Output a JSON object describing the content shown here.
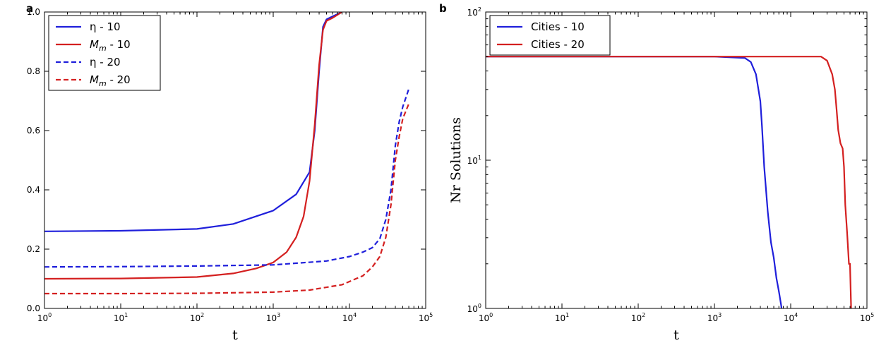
{
  "chart_data": [
    {
      "panel": "a",
      "type": "line",
      "xlabel": "t",
      "ylabel": "",
      "xscale": "log",
      "yscale": "linear",
      "xlim": [
        1,
        100000
      ],
      "ylim": [
        0,
        1
      ],
      "xticks": [
        {
          "base": "10",
          "exp": "0",
          "value": 1
        },
        {
          "base": "10",
          "exp": "1",
          "value": 10
        },
        {
          "base": "10",
          "exp": "2",
          "value": 100
        },
        {
          "base": "10",
          "exp": "3",
          "value": 1000
        },
        {
          "base": "10",
          "exp": "4",
          "value": 10000
        },
        {
          "base": "10",
          "exp": "5",
          "value": 100000
        }
      ],
      "yticks": [
        {
          "label": "0.0",
          "value": 0
        },
        {
          "label": "0.2",
          "value": 0.2
        },
        {
          "label": "0.4",
          "value": 0.4
        },
        {
          "label": "0.6",
          "value": 0.6
        },
        {
          "label": "0.8",
          "value": 0.8
        },
        {
          "label": "1.0",
          "value": 1.0
        }
      ],
      "legend_position": "top-left",
      "series": [
        {
          "name": "η  - 10",
          "color": "#1f1fdb",
          "style": "solid",
          "x": [
            1,
            10,
            100,
            300,
            1000,
            2000,
            3000,
            3500,
            4000,
            4500,
            5000,
            6000,
            8000
          ],
          "y": [
            0.26,
            0.262,
            0.268,
            0.285,
            0.33,
            0.385,
            0.46,
            0.6,
            0.8,
            0.95,
            0.975,
            0.985,
            1.0
          ]
        },
        {
          "name": "M_m  - 10",
          "color": "#d42020",
          "style": "solid",
          "x": [
            1,
            10,
            100,
            300,
            600,
            1000,
            1500,
            2000,
            2500,
            3000,
            3500,
            4000,
            4500,
            5000,
            6000,
            8000
          ],
          "y": [
            0.1,
            0.101,
            0.106,
            0.118,
            0.135,
            0.155,
            0.19,
            0.24,
            0.31,
            0.43,
            0.62,
            0.82,
            0.94,
            0.97,
            0.98,
            1.0
          ]
        },
        {
          "name": "η  - 20",
          "color": "#1f1fdb",
          "style": "dashed",
          "x": [
            1,
            10,
            100,
            1000,
            5000,
            10000,
            15000,
            20000,
            25000,
            30000,
            35000,
            40000,
            45000,
            50000,
            60000
          ],
          "y": [
            0.14,
            0.141,
            0.143,
            0.147,
            0.16,
            0.175,
            0.19,
            0.205,
            0.235,
            0.3,
            0.4,
            0.55,
            0.63,
            0.68,
            0.74
          ]
        },
        {
          "name": "M_m  - 20",
          "color": "#d42020",
          "style": "dashed",
          "x": [
            1,
            10,
            100,
            1000,
            3000,
            8000,
            15000,
            20000,
            25000,
            30000,
            35000,
            40000,
            45000,
            50000,
            60000
          ],
          "y": [
            0.05,
            0.05,
            0.051,
            0.055,
            0.062,
            0.08,
            0.11,
            0.14,
            0.175,
            0.24,
            0.35,
            0.5,
            0.58,
            0.64,
            0.69
          ]
        }
      ]
    },
    {
      "panel": "b",
      "type": "line",
      "xlabel": "t",
      "ylabel": "Nr Solutions",
      "xscale": "log",
      "yscale": "log",
      "xlim": [
        1,
        100000
      ],
      "ylim": [
        1,
        100
      ],
      "xticks": [
        {
          "base": "10",
          "exp": "0",
          "value": 1
        },
        {
          "base": "10",
          "exp": "1",
          "value": 10
        },
        {
          "base": "10",
          "exp": "2",
          "value": 100
        },
        {
          "base": "10",
          "exp": "3",
          "value": 1000
        },
        {
          "base": "10",
          "exp": "4",
          "value": 10000
        },
        {
          "base": "10",
          "exp": "5",
          "value": 100000
        }
      ],
      "yticks": [
        {
          "base": "10",
          "exp": "0",
          "value": 1
        },
        {
          "base": "10",
          "exp": "1",
          "value": 10
        },
        {
          "base": "10",
          "exp": "2",
          "value": 100
        }
      ],
      "legend_position": "top-left",
      "series": [
        {
          "name": "Cities  - 10",
          "color": "#1f1fdb",
          "style": "solid",
          "x": [
            1,
            1000,
            2500,
            3000,
            3500,
            4000,
            4200,
            4500,
            5000,
            5500,
            6000,
            6500,
            7000,
            7500,
            7600
          ],
          "y": [
            50,
            50,
            49,
            46,
            38,
            25,
            17,
            9,
            4.5,
            2.8,
            2.2,
            1.6,
            1.3,
            1.05,
            1
          ]
        },
        {
          "name": "Cities  - 20",
          "color": "#d42020",
          "style": "solid",
          "x": [
            1,
            10000,
            25000,
            30000,
            35000,
            38000,
            40000,
            42000,
            45000,
            48000,
            50000,
            52000,
            55000,
            58000,
            60000,
            62000
          ],
          "y": [
            50,
            50,
            50,
            47,
            38,
            30,
            22,
            16,
            13,
            12,
            9,
            5,
            3.2,
            2,
            2,
            1
          ]
        }
      ]
    }
  ]
}
